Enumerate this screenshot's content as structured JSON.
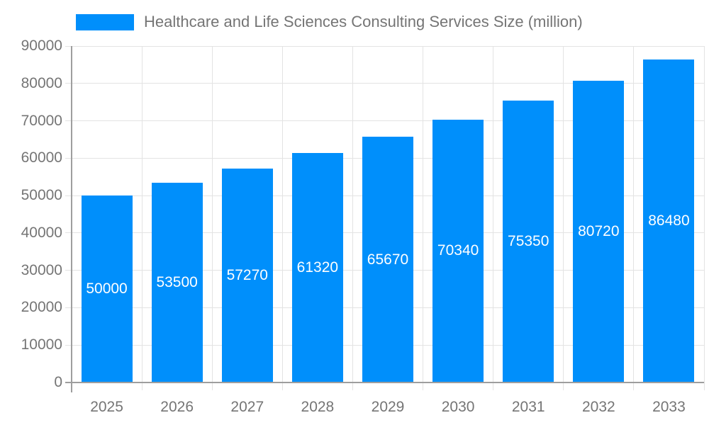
{
  "legend": {
    "label": "Healthcare and Life Sciences Consulting Services Size (million)"
  },
  "colors": {
    "bar": "#008FFB",
    "value_label": "#ffffff",
    "axis_text": "#757575",
    "grid_line": "#e3e3e3",
    "axis_line": "#9e9e9e",
    "background": "#ffffff"
  },
  "chart_data": {
    "type": "bar",
    "title": "Healthcare and Life Sciences Consulting Services Size (million)",
    "categories": [
      "2025",
      "2026",
      "2027",
      "2028",
      "2029",
      "2030",
      "2031",
      "2032",
      "2033"
    ],
    "values": [
      50000,
      53500,
      57270,
      61320,
      65670,
      70340,
      75350,
      80720,
      86480
    ],
    "xlabel": "",
    "ylabel": "",
    "ylim": [
      0,
      90000
    ],
    "ytick_step": 10000,
    "yticks": [
      0,
      10000,
      20000,
      30000,
      40000,
      50000,
      60000,
      70000,
      80000,
      90000
    ],
    "grid": true,
    "legend_position": "top-left",
    "value_labels": "inside-center"
  }
}
